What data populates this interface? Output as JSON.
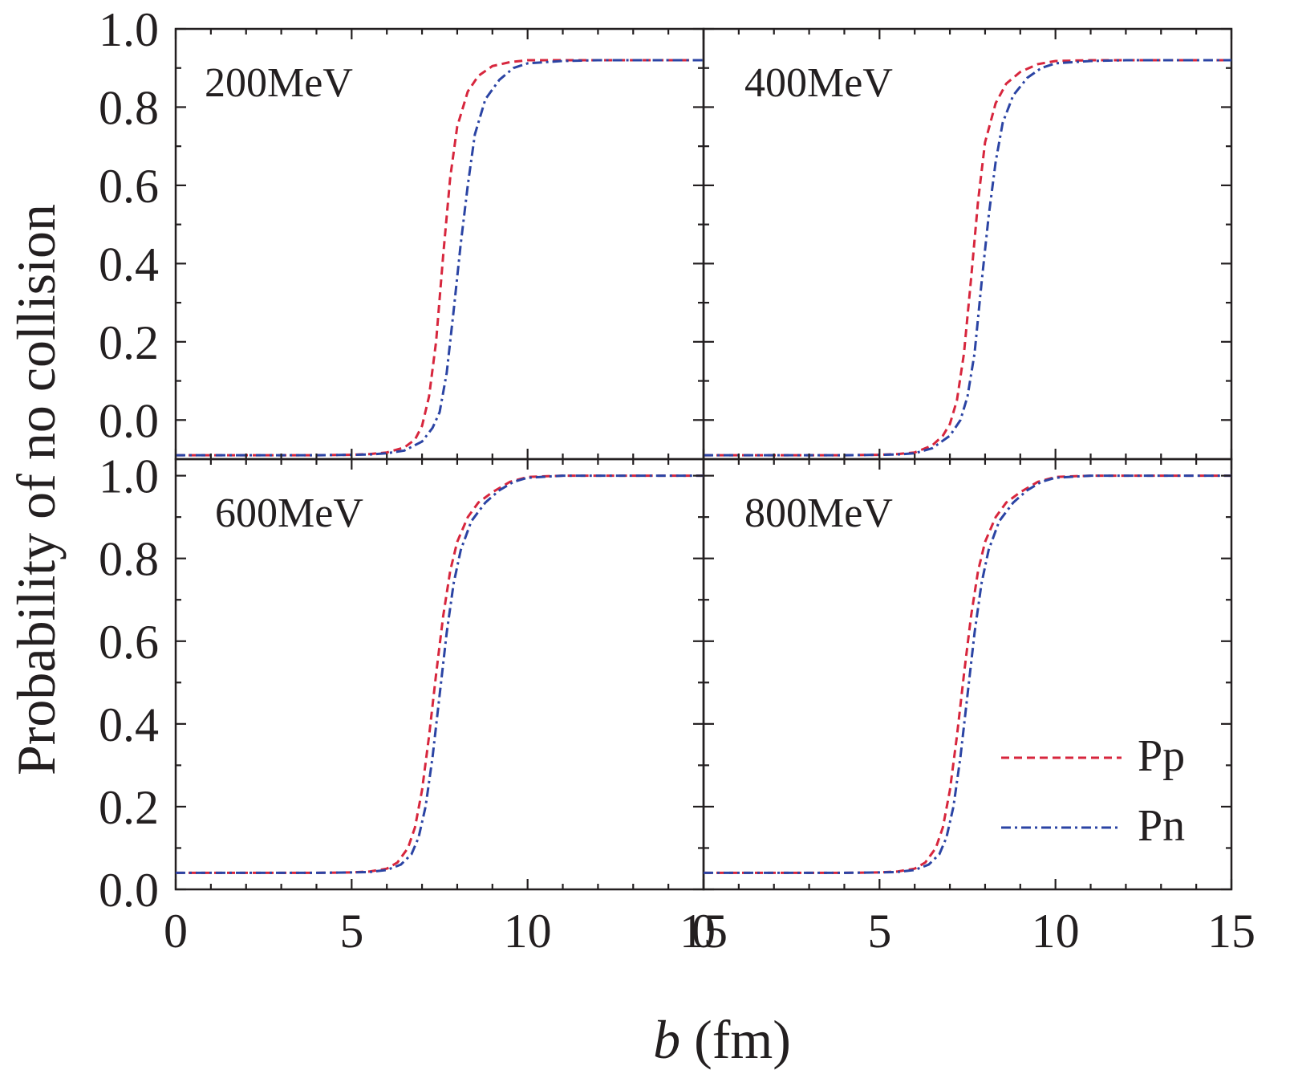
{
  "chart_data": {
    "type": "line",
    "layout": "2x2 panels, shared axes",
    "xlabel_italic": "b",
    "xlabel_rest": " (fm)",
    "ylabel": "Probability of no collision",
    "xlim": [
      0,
      15
    ],
    "xticks": [
      0,
      5,
      10,
      15
    ],
    "xtick_labels": [
      "0",
      "5",
      "10",
      "15"
    ],
    "grid": false,
    "legend": {
      "placement": "bottom-right panel, lower right",
      "entries": [
        {
          "name": "Pp",
          "color": "#d7263d",
          "style": "dashed"
        },
        {
          "name": "Pn",
          "color": "#2b44a4",
          "style": "dash-dot"
        }
      ]
    },
    "panels": [
      {
        "label": "200MeV",
        "ylim": [
          -0.1,
          1.0
        ],
        "yticks": [
          0.0,
          0.2,
          0.4,
          0.6,
          0.8,
          1.0
        ],
        "ytick_labels": [
          "0.0",
          "0.2",
          "0.4",
          "0.6",
          "0.8",
          "1.0"
        ],
        "series": [
          {
            "name": "Pp",
            "x": [
              0,
              2,
              4,
              5,
              5.5,
              6,
              6.5,
              6.8,
              7.0,
              7.2,
              7.4,
              7.6,
              7.8,
              8.0,
              8.3,
              8.6,
              9.0,
              9.5,
              10,
              11,
              12,
              13,
              15
            ],
            "y": [
              -0.09,
              -0.09,
              -0.09,
              -0.089,
              -0.087,
              -0.083,
              -0.07,
              -0.05,
              -0.015,
              0.06,
              0.2,
              0.42,
              0.62,
              0.75,
              0.84,
              0.88,
              0.905,
              0.915,
              0.92,
              0.92,
              0.92,
              0.92,
              0.92
            ]
          },
          {
            "name": "Pn",
            "x": [
              0,
              2,
              4,
              5,
              5.5,
              6,
              6.5,
              7.0,
              7.3,
              7.5,
              7.7,
              7.9,
              8.1,
              8.3,
              8.5,
              8.8,
              9.2,
              9.6,
              10,
              11,
              12,
              13,
              15
            ],
            "y": [
              -0.09,
              -0.09,
              -0.09,
              -0.089,
              -0.088,
              -0.085,
              -0.078,
              -0.055,
              -0.02,
              0.02,
              0.12,
              0.28,
              0.45,
              0.6,
              0.73,
              0.82,
              0.87,
              0.9,
              0.912,
              0.918,
              0.92,
              0.92,
              0.92
            ]
          }
        ]
      },
      {
        "label": "400MeV",
        "ylim": [
          -0.1,
          1.0
        ],
        "yticks": [
          0.0,
          0.2,
          0.4,
          0.6,
          0.8,
          1.0
        ],
        "ytick_labels": [
          "0.0",
          "0.2",
          "0.4",
          "0.6",
          "0.8",
          "1.0"
        ],
        "series": [
          {
            "name": "Pp",
            "x": [
              0,
              2,
              4,
              5,
              5.5,
              6,
              6.5,
              6.8,
              7.0,
              7.2,
              7.4,
              7.6,
              7.8,
              8.0,
              8.3,
              8.6,
              9.0,
              9.5,
              10,
              11,
              12,
              13,
              15
            ],
            "y": [
              -0.09,
              -0.09,
              -0.09,
              -0.089,
              -0.087,
              -0.083,
              -0.065,
              -0.04,
              -0.01,
              0.05,
              0.17,
              0.36,
              0.56,
              0.71,
              0.81,
              0.86,
              0.89,
              0.91,
              0.918,
              0.92,
              0.92,
              0.92,
              0.92
            ]
          },
          {
            "name": "Pn",
            "x": [
              0,
              2,
              4,
              5,
              5.5,
              6,
              6.5,
              7.0,
              7.3,
              7.5,
              7.7,
              7.9,
              8.1,
              8.3,
              8.5,
              8.8,
              9.2,
              9.6,
              10,
              11,
              12,
              13,
              15
            ],
            "y": [
              -0.09,
              -0.09,
              -0.09,
              -0.089,
              -0.088,
              -0.085,
              -0.072,
              -0.04,
              0.0,
              0.06,
              0.17,
              0.35,
              0.52,
              0.66,
              0.76,
              0.83,
              0.875,
              0.9,
              0.912,
              0.918,
              0.92,
              0.92,
              0.92
            ]
          }
        ]
      },
      {
        "label": "600MeV",
        "ylim": [
          0.0,
          1.04
        ],
        "yticks": [
          0.0,
          0.2,
          0.4,
          0.6,
          0.8,
          1.0
        ],
        "ytick_labels": [
          "0.0",
          "0.2",
          "0.4",
          "0.6",
          "0.8",
          "1.0"
        ],
        "series": [
          {
            "name": "Pp",
            "x": [
              0,
              2,
              4,
              5,
              5.5,
              6,
              6.3,
              6.6,
              6.8,
              7.0,
              7.2,
              7.4,
              7.6,
              7.8,
              8.0,
              8.3,
              8.6,
              9.0,
              9.5,
              10,
              11,
              12,
              15
            ],
            "y": [
              0.04,
              0.04,
              0.04,
              0.041,
              0.043,
              0.05,
              0.065,
              0.1,
              0.15,
              0.24,
              0.37,
              0.52,
              0.66,
              0.77,
              0.84,
              0.9,
              0.935,
              0.96,
              0.985,
              0.997,
              1.0,
              1.0,
              1.0
            ]
          },
          {
            "name": "Pn",
            "x": [
              0,
              2,
              4,
              5,
              5.5,
              6,
              6.4,
              6.7,
              6.9,
              7.1,
              7.3,
              7.5,
              7.7,
              7.9,
              8.1,
              8.4,
              8.8,
              9.2,
              9.6,
              10,
              11,
              12,
              15
            ],
            "y": [
              0.04,
              0.04,
              0.04,
              0.041,
              0.042,
              0.047,
              0.06,
              0.085,
              0.125,
              0.2,
              0.32,
              0.47,
              0.62,
              0.74,
              0.82,
              0.89,
              0.935,
              0.965,
              0.985,
              0.995,
              1.0,
              1.0,
              1.0
            ]
          }
        ]
      },
      {
        "label": "800MeV",
        "ylim": [
          0.0,
          1.04
        ],
        "yticks": [
          0.0,
          0.2,
          0.4,
          0.6,
          0.8,
          1.0
        ],
        "ytick_labels": [
          "0.0",
          "0.2",
          "0.4",
          "0.6",
          "0.8",
          "1.0"
        ],
        "series": [
          {
            "name": "Pp",
            "x": [
              0,
              2,
              4,
              5,
              5.5,
              6,
              6.3,
              6.6,
              6.8,
              7.0,
              7.2,
              7.4,
              7.6,
              7.8,
              8.0,
              8.3,
              8.6,
              9.0,
              9.5,
              10,
              11,
              12,
              15
            ],
            "y": [
              0.04,
              0.04,
              0.04,
              0.041,
              0.043,
              0.05,
              0.065,
              0.1,
              0.15,
              0.24,
              0.37,
              0.52,
              0.66,
              0.77,
              0.84,
              0.9,
              0.935,
              0.96,
              0.985,
              0.997,
              1.0,
              1.0,
              1.0
            ]
          },
          {
            "name": "Pn",
            "x": [
              0,
              2,
              4,
              5,
              5.5,
              6,
              6.4,
              6.7,
              6.9,
              7.1,
              7.3,
              7.5,
              7.7,
              7.9,
              8.1,
              8.4,
              8.8,
              9.2,
              9.6,
              10,
              11,
              12,
              15
            ],
            "y": [
              0.04,
              0.04,
              0.04,
              0.041,
              0.042,
              0.047,
              0.06,
              0.085,
              0.125,
              0.2,
              0.32,
              0.47,
              0.62,
              0.74,
              0.82,
              0.89,
              0.935,
              0.965,
              0.985,
              0.995,
              1.0,
              1.0,
              1.0
            ]
          }
        ]
      }
    ]
  }
}
